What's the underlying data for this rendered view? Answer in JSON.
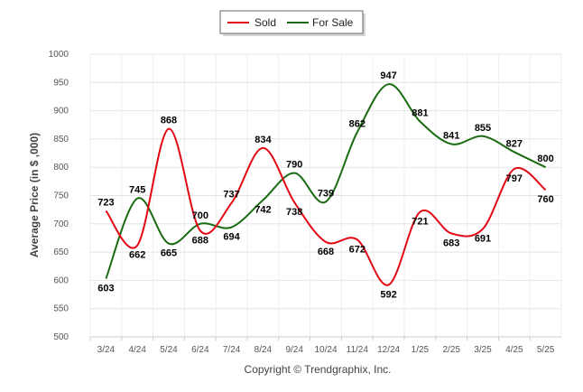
{
  "chart_data": {
    "type": "line",
    "ylabel": "Average Price (in $ ,000)",
    "xlabel": "",
    "ylim": [
      500,
      1000
    ],
    "yticks": [
      500,
      550,
      600,
      650,
      700,
      750,
      800,
      850,
      900,
      950,
      1000
    ],
    "categories": [
      "3/24",
      "4/24",
      "5/24",
      "6/24",
      "7/24",
      "8/24",
      "9/24",
      "10/24",
      "11/24",
      "12/24",
      "1/25",
      "2/25",
      "3/25",
      "4/25",
      "5/25"
    ],
    "series": [
      {
        "name": "Sold",
        "color": "#e30613",
        "values": [
          723,
          662,
          868,
          688,
          737,
          834,
          738,
          668,
          672,
          592,
          721,
          683,
          691,
          797,
          760
        ]
      },
      {
        "name": "For Sale",
        "color": "#1a6b12",
        "values": [
          603,
          745,
          665,
          700,
          694,
          742,
          790,
          739,
          862,
          947,
          881,
          841,
          855,
          827,
          800
        ]
      }
    ],
    "grid": true,
    "legend": "top-center"
  },
  "footer": "Copyright © Trendgraphix, Inc."
}
